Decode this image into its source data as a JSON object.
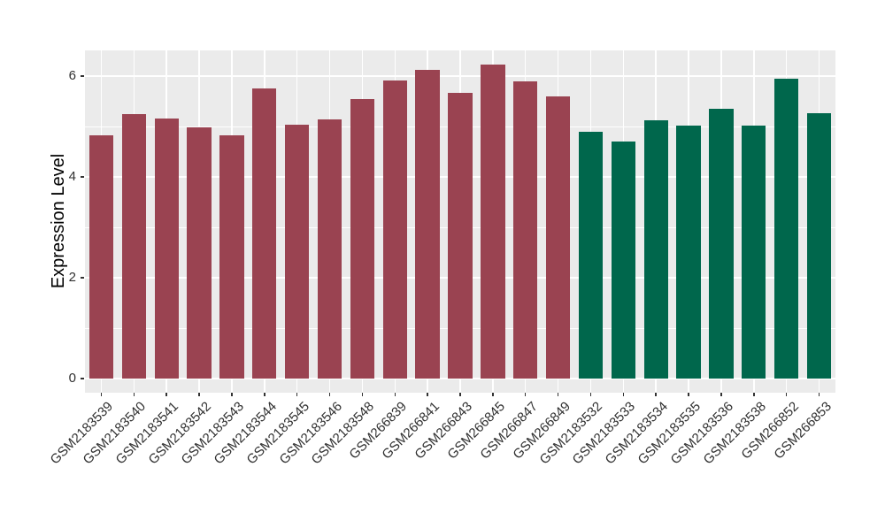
{
  "chart_data": {
    "type": "bar",
    "title": "",
    "xlabel": "",
    "ylabel": "Expression Level",
    "categories": [
      "GSM2183539",
      "GSM2183540",
      "GSM2183541",
      "GSM2183542",
      "GSM2183543",
      "GSM2183544",
      "GSM2183545",
      "GSM2183546",
      "GSM2183548",
      "GSM266839",
      "GSM266841",
      "GSM266843",
      "GSM266845",
      "GSM266847",
      "GSM266849",
      "GSM2183532",
      "GSM2183533",
      "GSM2183534",
      "GSM2183535",
      "GSM2183536",
      "GSM2183538",
      "GSM266852",
      "GSM266853"
    ],
    "values": [
      4.82,
      5.25,
      5.15,
      4.98,
      4.82,
      5.75,
      5.04,
      5.14,
      5.54,
      5.92,
      6.13,
      5.67,
      6.22,
      5.9,
      5.59,
      4.89,
      4.7,
      5.13,
      5.02,
      5.35,
      5.01,
      5.95,
      5.27
    ],
    "bar_groups": [
      "group1",
      "group1",
      "group1",
      "group1",
      "group1",
      "group1",
      "group1",
      "group1",
      "group1",
      "group1",
      "group1",
      "group1",
      "group1",
      "group1",
      "group1",
      "group2",
      "group2",
      "group2",
      "group2",
      "group2",
      "group2",
      "group2",
      "group2"
    ],
    "group_colors": {
      "group1": "#9a4351",
      "group2": "#00674c"
    },
    "y_ticks": [
      "0",
      "2",
      "4",
      "6"
    ],
    "y_tick_values": [
      0,
      2,
      4,
      6
    ],
    "y_minor_gridline_values": [
      1,
      3,
      5
    ],
    "ylim": [
      -0.31,
      6.5
    ],
    "grid": "on",
    "legend": "none",
    "panel_bg": "#ebebeb",
    "grid_color": "#ffffff",
    "axis_text_color": "#303030",
    "axis_title_color": "#000000",
    "background_color": "#ffffff"
  }
}
